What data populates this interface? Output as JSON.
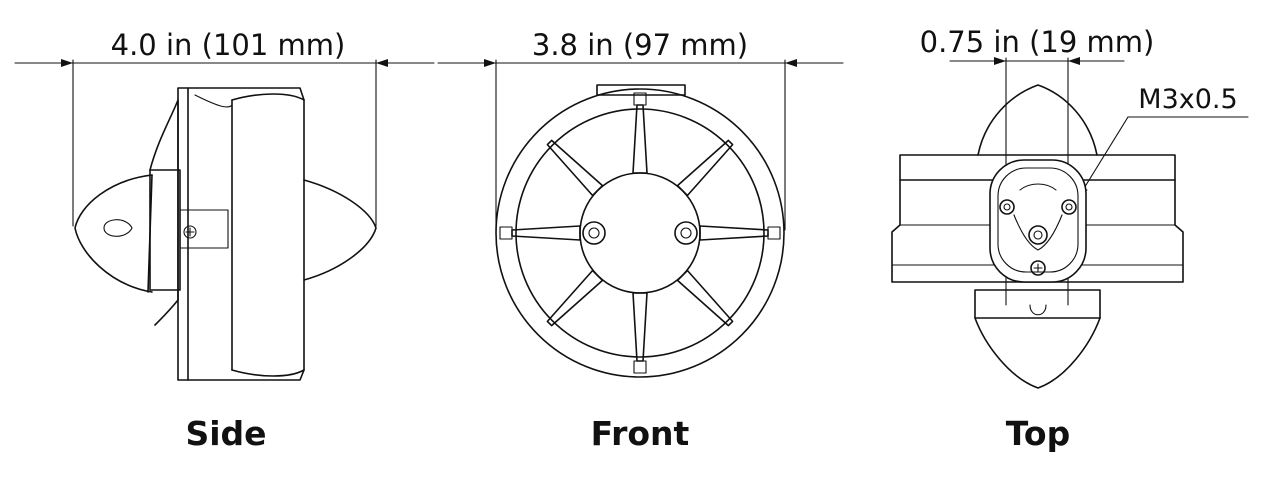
{
  "views": {
    "side": {
      "caption": "Side",
      "dimension": "4.0 in (101 mm)"
    },
    "front": {
      "caption": "Front",
      "dimension": "3.8 in (97 mm)"
    },
    "top": {
      "caption": "Top",
      "dimension": "0.75 in (19 mm)",
      "thread_note": "M3x0.5"
    }
  }
}
